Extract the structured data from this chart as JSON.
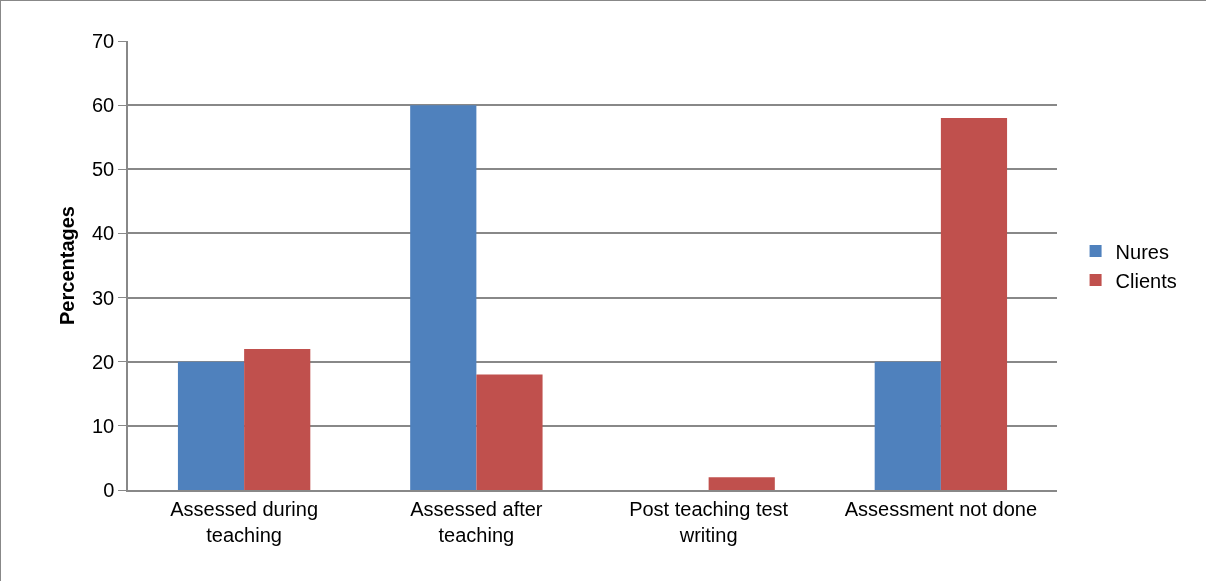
{
  "chart_data": {
    "type": "bar",
    "ylabel": "Percentages",
    "categories": [
      "Assessed during teaching",
      "Assessed after teaching",
      "Post teaching test writing",
      "Assessment not done"
    ],
    "series": [
      {
        "name": "Nures",
        "color": "#4f81bd",
        "values": [
          20,
          60,
          0,
          20
        ]
      },
      {
        "name": "Clients",
        "color": "#c0504d",
        "values": [
          22,
          18,
          2,
          58
        ]
      }
    ],
    "ylim": [
      0,
      70
    ],
    "yticks": [
      0,
      10,
      20,
      30,
      40,
      50,
      60,
      70
    ],
    "grid": "y",
    "legend": "right"
  }
}
